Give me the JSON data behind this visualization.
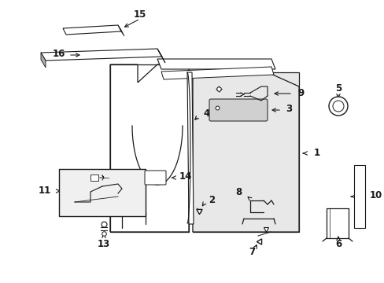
{
  "bg_color": "#ffffff",
  "line_color": "#1a1a1a",
  "fig_width": 4.89,
  "fig_height": 3.6,
  "dpi": 100,
  "font_size": 8.5
}
